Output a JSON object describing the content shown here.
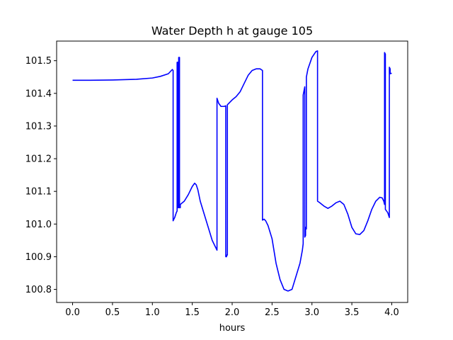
{
  "chart_data": {
    "type": "line",
    "title": "Water Depth h at gauge 105",
    "xlabel": "hours",
    "ylabel": "",
    "xlim": [
      -0.2,
      4.2
    ],
    "ylim": [
      100.76,
      101.56
    ],
    "xticks": [
      0.0,
      0.5,
      1.0,
      1.5,
      2.0,
      2.5,
      3.0,
      3.5,
      4.0
    ],
    "xtick_labels": [
      "0.0",
      "0.5",
      "1.0",
      "1.5",
      "2.0",
      "2.5",
      "3.0",
      "3.5",
      "4.0"
    ],
    "yticks": [
      100.8,
      100.9,
      101.0,
      101.1,
      101.2,
      101.3,
      101.4,
      101.5
    ],
    "ytick_labels": [
      "100.8",
      "100.9",
      "101.0",
      "101.1",
      "101.2",
      "101.3",
      "101.4",
      "101.5"
    ],
    "grid": false,
    "legend": "none",
    "series": [
      {
        "color": "#0000ff",
        "x": [
          0.0,
          0.2,
          0.5,
          0.8,
          1.0,
          1.1,
          1.2,
          1.25,
          1.26,
          1.26,
          1.28,
          1.3,
          1.31,
          1.31,
          1.32,
          1.32,
          1.33,
          1.33,
          1.34,
          1.34,
          1.35,
          1.35,
          1.4,
          1.45,
          1.5,
          1.53,
          1.55,
          1.57,
          1.6,
          1.65,
          1.7,
          1.75,
          1.8,
          1.81,
          1.81,
          1.83,
          1.86,
          1.9,
          1.92,
          1.92,
          1.93,
          1.93,
          1.94,
          1.94,
          2.0,
          2.05,
          2.1,
          2.15,
          2.2,
          2.25,
          2.3,
          2.35,
          2.38,
          2.38,
          2.4,
          2.42,
          2.45,
          2.5,
          2.55,
          2.6,
          2.65,
          2.7,
          2.75,
          2.8,
          2.85,
          2.88,
          2.89,
          2.89,
          2.91,
          2.91,
          2.92,
          2.92,
          2.93,
          2.93,
          2.95,
          3.0,
          3.05,
          3.07,
          3.07,
          3.1,
          3.15,
          3.2,
          3.25,
          3.3,
          3.35,
          3.4,
          3.45,
          3.5,
          3.55,
          3.6,
          3.65,
          3.7,
          3.75,
          3.8,
          3.85,
          3.88,
          3.9,
          3.91,
          3.91,
          3.92,
          3.92,
          3.95,
          3.97,
          3.97,
          3.98,
          3.98,
          4.0
        ],
        "y": [
          101.44,
          101.44,
          101.441,
          101.443,
          101.447,
          101.452,
          101.46,
          101.473,
          101.47,
          101.01,
          101.02,
          101.035,
          101.04,
          101.495,
          101.495,
          101.05,
          101.05,
          101.51,
          101.51,
          101.05,
          101.05,
          101.06,
          101.07,
          101.09,
          101.115,
          101.125,
          101.12,
          101.105,
          101.07,
          101.03,
          100.99,
          100.95,
          100.925,
          100.92,
          101.385,
          101.37,
          101.36,
          101.36,
          101.362,
          100.9,
          100.9,
          100.905,
          100.905,
          101.365,
          101.38,
          101.39,
          101.405,
          101.43,
          101.455,
          101.47,
          101.475,
          101.475,
          101.47,
          101.012,
          101.015,
          101.01,
          100.995,
          100.955,
          100.88,
          100.83,
          100.8,
          100.795,
          100.8,
          100.84,
          100.88,
          100.92,
          100.94,
          101.395,
          101.42,
          100.96,
          100.965,
          100.99,
          100.985,
          101.45,
          101.475,
          101.51,
          101.528,
          101.53,
          101.07,
          101.065,
          101.055,
          101.048,
          101.055,
          101.065,
          101.07,
          101.06,
          101.03,
          100.99,
          100.97,
          100.968,
          100.98,
          101.01,
          101.045,
          101.07,
          101.082,
          101.08,
          101.07,
          101.06,
          101.525,
          101.52,
          101.045,
          101.035,
          101.02,
          101.48,
          101.475,
          101.46,
          101.462
        ]
      }
    ]
  }
}
